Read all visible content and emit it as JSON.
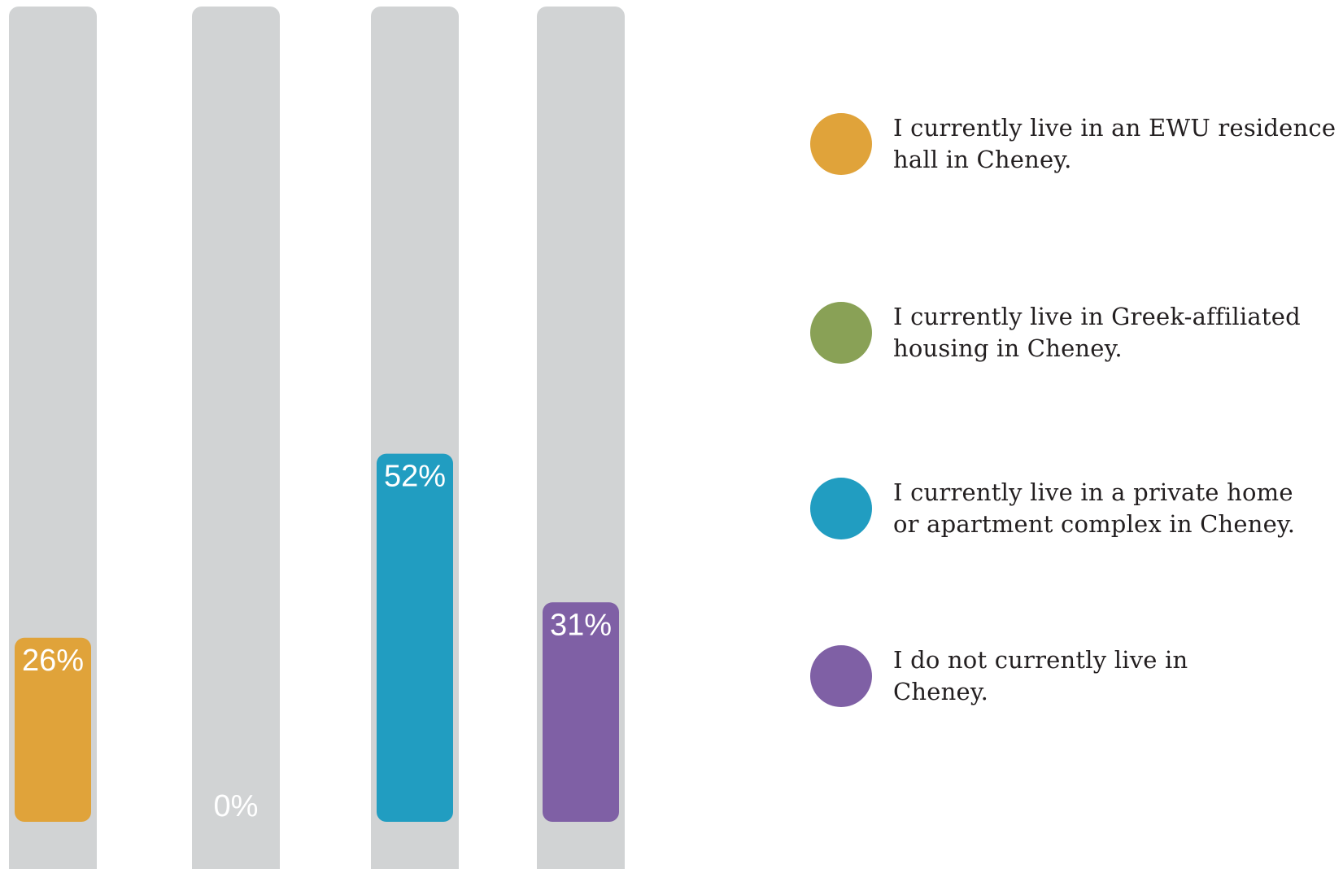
{
  "chart_data": {
    "type": "bar",
    "categories": [
      "I currently live in an EWU residence hall in Cheney.",
      "I currently live in Greek-affiliated housing in Cheney.",
      "I currently live in a private home or apartment complex in Cheney.",
      "I do not currently live in Cheney."
    ],
    "values": [
      26,
      0,
      52,
      31
    ],
    "value_labels": [
      "26%",
      "0%",
      "52%",
      "31%"
    ],
    "colors": [
      "#e0a33a",
      "#89a156",
      "#219dc1",
      "#7f60a5"
    ],
    "track_color": "#d1d3d4",
    "value_label_color": "#ffffff",
    "ylim": [
      0,
      100
    ],
    "grid": false,
    "legend_position": "right"
  },
  "legend": {
    "items": [
      {
        "label": "I currently live in an EWU residence hall in Cheney.",
        "color": "#e0a33a"
      },
      {
        "label": "I currently live in Greek-affiliated housing in Cheney.",
        "color": "#89a156"
      },
      {
        "label": "I currently live in a private home or apartment complex in Cheney.",
        "color": "#219dc1"
      },
      {
        "label": "I do not currently live in Cheney.",
        "color": "#7f60a5"
      }
    ]
  }
}
